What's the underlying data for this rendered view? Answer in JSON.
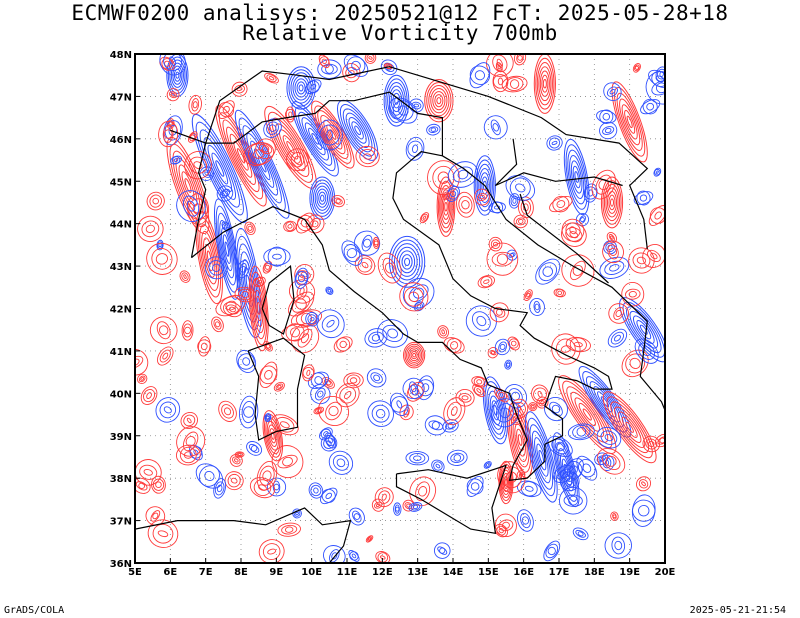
{
  "title": {
    "line1": "ECMWF0200 analisys: 20250521@12 FcT: 2025-05-28+18",
    "line2": "Relative Vorticity 700mb"
  },
  "map": {
    "lon_range": [
      5,
      20
    ],
    "lat_range": [
      36,
      48
    ],
    "lon_ticks": [
      "5E",
      "6E",
      "7E",
      "8E",
      "9E",
      "10E",
      "11E",
      "12E",
      "13E",
      "14E",
      "15E",
      "16E",
      "17E",
      "18E",
      "19E",
      "20E"
    ],
    "lat_ticks": [
      "36N",
      "37N",
      "38N",
      "39N",
      "40N",
      "41N",
      "42N",
      "43N",
      "44N",
      "45N",
      "46N",
      "47N",
      "48N"
    ],
    "grid": "dotted",
    "colors": {
      "positive": "#ff3b3b",
      "negative": "#2f50ff",
      "coastline": "#000000",
      "grid": "#888888"
    }
  },
  "footer": {
    "left": "GrADS/COLA",
    "right": "2025-05-21-21:54"
  }
}
